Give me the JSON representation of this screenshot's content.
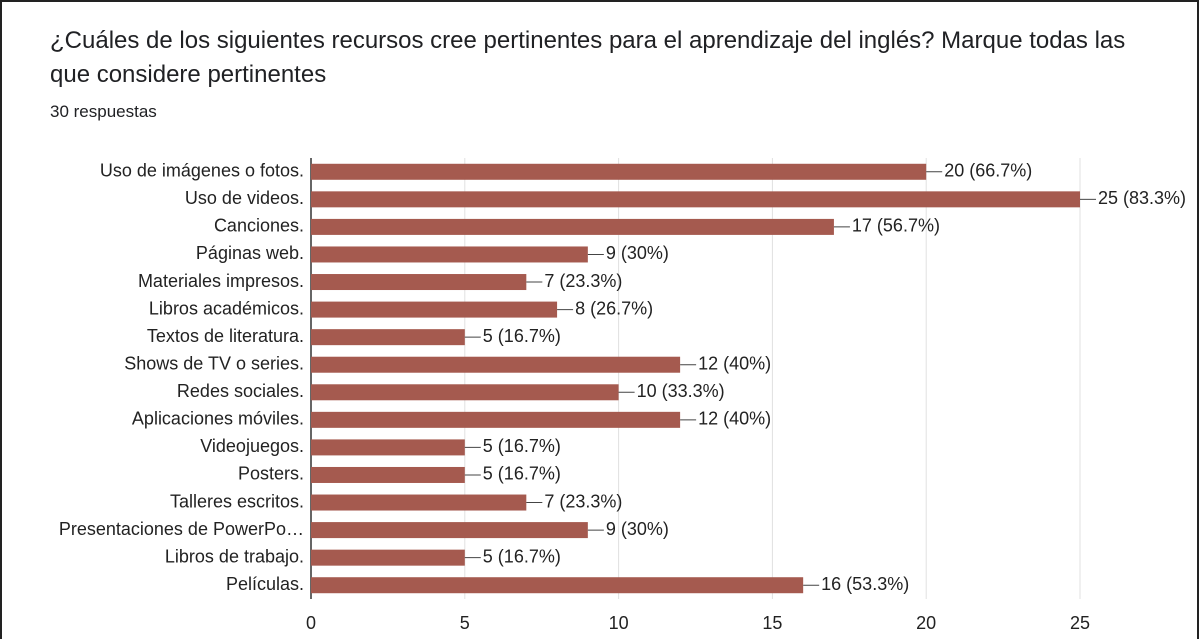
{
  "chart_data": {
    "type": "bar",
    "orientation": "horizontal",
    "title": "¿Cuáles de los siguientes recursos cree pertinentes para el aprendizaje del inglés?  Marque todas las que considere pertinentes",
    "subtitle": "30 respuestas",
    "categories": [
      "Uso de imágenes o fotos.",
      "Uso de videos.",
      "Canciones.",
      "Páginas web.",
      "Materiales impresos.",
      "Libros académicos.",
      "Textos de literatura.",
      "Shows de TV o series.",
      "Redes sociales.",
      "Aplicaciones móviles.",
      "Videojuegos.",
      "Posters.",
      "Talleres escritos.",
      "Presentaciones de PowerPo…",
      "Libros de trabajo.",
      "Películas."
    ],
    "values": [
      20,
      25,
      17,
      9,
      7,
      8,
      5,
      12,
      10,
      12,
      5,
      5,
      7,
      9,
      5,
      16
    ],
    "value_labels": [
      "20 (66.7%)",
      "25 (83.3%)",
      "17 (56.7%)",
      "9 (30%)",
      "7 (23.3%)",
      "8 (26.7%)",
      "5 (16.7%)",
      "12 (40%)",
      "10 (33.3%)",
      "12 (40%)",
      "5 (16.7%)",
      "5 (16.7%)",
      "7 (23.3%)",
      "9 (30%)",
      "5 (16.7%)",
      "16 (53.3%)"
    ],
    "color": "#a55a4f",
    "xlim": [
      0,
      25
    ],
    "xticks": [
      0,
      5,
      10,
      15,
      20,
      25
    ],
    "grid": true
  }
}
